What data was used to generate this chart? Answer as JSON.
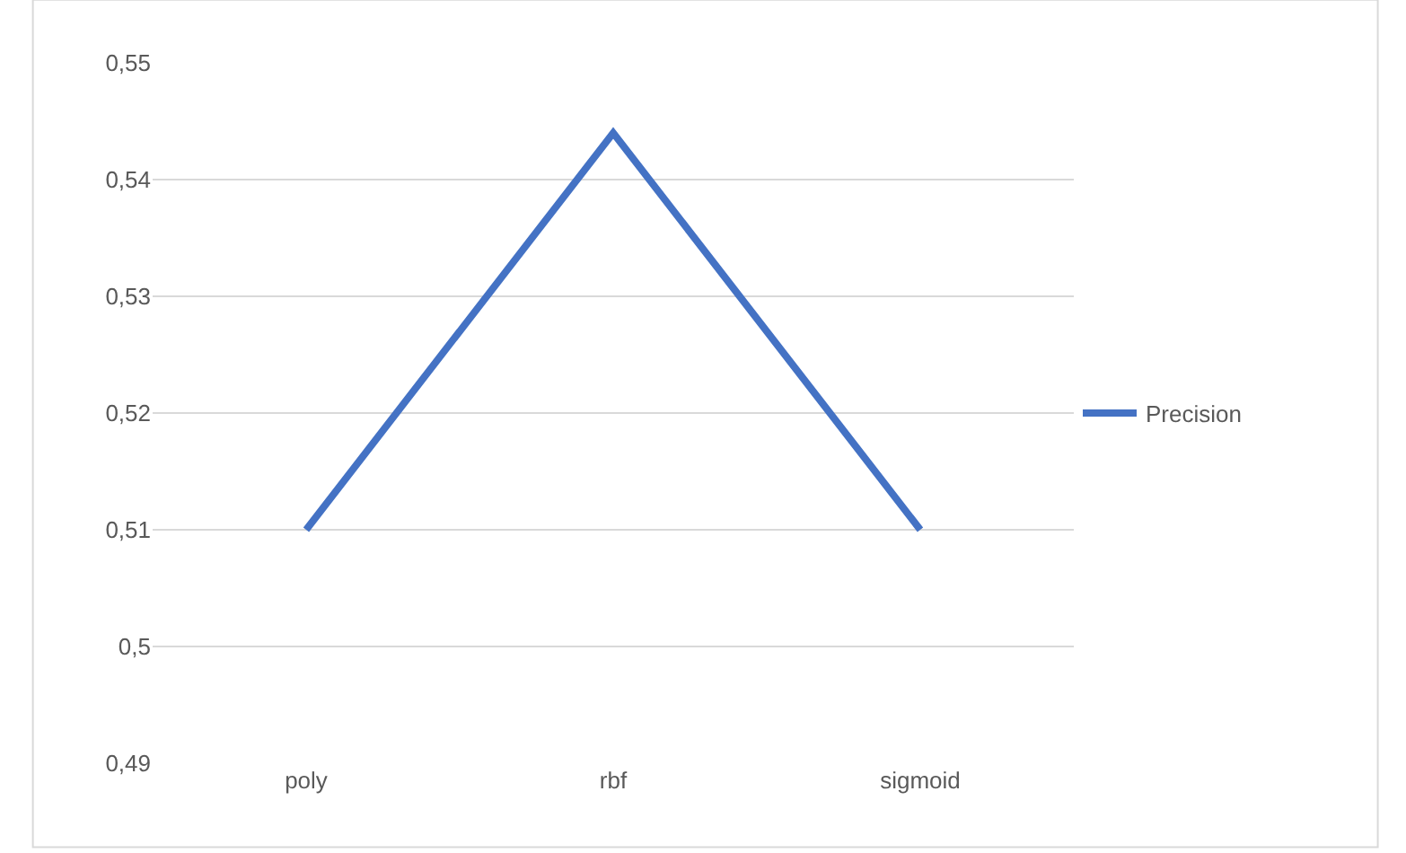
{
  "chart_data": {
    "type": "line",
    "categories": [
      "poly",
      "rbf",
      "sigmoid"
    ],
    "series": [
      {
        "name": "Precision",
        "color": "#4472c4",
        "values": [
          0.51,
          0.544,
          0.51
        ]
      }
    ],
    "ylim": [
      0.49,
      0.55
    ],
    "yticks": [
      {
        "value": 0.49,
        "label": "0,49"
      },
      {
        "value": 0.5,
        "label": "0,5"
      },
      {
        "value": 0.51,
        "label": "0,51"
      },
      {
        "value": 0.52,
        "label": "0,52"
      },
      {
        "value": 0.53,
        "label": "0,53"
      },
      {
        "value": 0.54,
        "label": "0,54"
      },
      {
        "value": 0.55,
        "label": "0,55"
      }
    ],
    "grid": "y",
    "legend": "right",
    "marker": "none",
    "line_style": "solid"
  }
}
